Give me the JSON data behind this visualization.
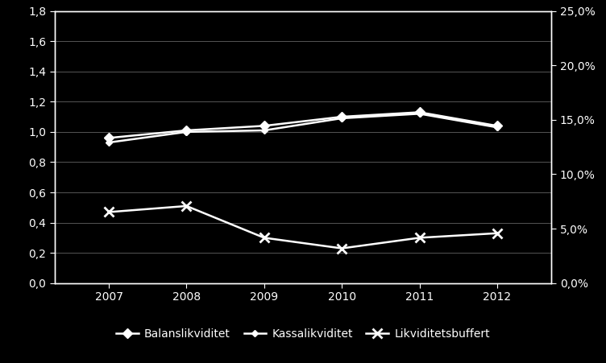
{
  "years": [
    2007,
    2008,
    2009,
    2010,
    2011,
    2012
  ],
  "balanslikviditet": [
    0.96,
    1.01,
    1.04,
    1.1,
    1.13,
    1.04
  ],
  "kassalikviditet": [
    0.93,
    1.0,
    1.01,
    1.09,
    1.12,
    1.03
  ],
  "likviditetsbuffert": [
    0.47,
    0.51,
    0.3,
    0.23,
    0.3,
    0.33
  ],
  "left_ylim": [
    0.0,
    1.8
  ],
  "left_yticks": [
    0.0,
    0.2,
    0.4,
    0.6,
    0.8,
    1.0,
    1.2,
    1.4,
    1.6,
    1.8
  ],
  "right_ylim": [
    0.0,
    0.25
  ],
  "right_yticks": [
    0.0,
    0.05,
    0.1,
    0.15,
    0.2,
    0.25
  ],
  "right_ytick_labels": [
    "0,0%",
    "5,0%",
    "10,0%",
    "15,0%",
    "20,0%",
    "25,0%"
  ],
  "left_ytick_labels": [
    "0,0",
    "0,2",
    "0,4",
    "0,6",
    "0,8",
    "1,0",
    "1,2",
    "1,4",
    "1,6",
    "1,8"
  ],
  "line_color": "#ffffff",
  "background_color": "#000000",
  "text_color": "#ffffff",
  "grid_color": "#555555",
  "legend_labels": [
    "Balanslikviditet",
    "Kassalikviditet",
    "Likviditetsbuffert"
  ]
}
